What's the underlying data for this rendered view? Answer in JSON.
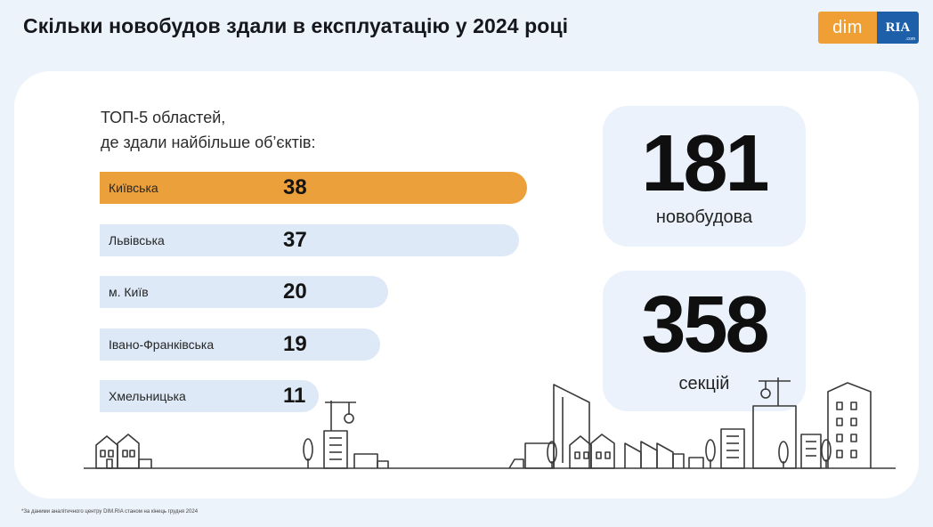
{
  "title": "Скільки новобудов здали в експлуатацію у 2024 році",
  "logo": {
    "left": "dim",
    "right": "RIA",
    "right_sub": ".com"
  },
  "subtitle_line1": "ТОП-5 областей,",
  "subtitle_line2": "де здали найбільше об’єктів:",
  "chart_data": {
    "type": "bar",
    "orientation": "horizontal",
    "categories": [
      "Київська",
      "Львівська",
      "м. Київ",
      "Івано-Франківська",
      "Хмельницька"
    ],
    "values": [
      38,
      37,
      20,
      19,
      11
    ],
    "highlight_color": "#eca03b",
    "bar_color": "#dde9f7"
  },
  "stats": {
    "buildings": {
      "value": "181",
      "label": "новобудова"
    },
    "sections": {
      "value": "358",
      "label": "секцій"
    }
  },
  "footnote": "*За даними аналітичного центру DIM.RIA станом на кінець грудня 2024"
}
